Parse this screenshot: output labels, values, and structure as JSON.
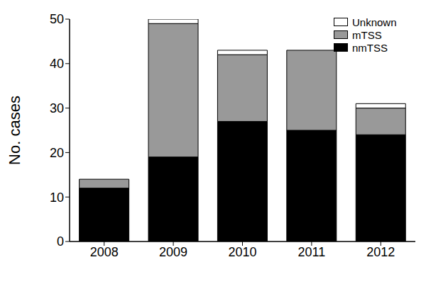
{
  "chart_data": {
    "type": "bar",
    "stacked": true,
    "y_label": "No. cases",
    "categories": [
      "2008",
      "2009",
      "2010",
      "2011",
      "2012"
    ],
    "series": [
      {
        "name": "nmTSS",
        "color": "#000000",
        "values": [
          12,
          19,
          27,
          25,
          24
        ]
      },
      {
        "name": "mTSS",
        "color": "#999999",
        "values": [
          2,
          30,
          15,
          18,
          6
        ]
      },
      {
        "name": "Unknown",
        "color": "#ffffff",
        "values": [
          0,
          1,
          1,
          0,
          1
        ]
      }
    ],
    "ylim": [
      0,
      50
    ],
    "yticks": [
      0,
      10,
      20,
      30,
      40,
      50
    ],
    "grid": false,
    "legend": "top right"
  }
}
